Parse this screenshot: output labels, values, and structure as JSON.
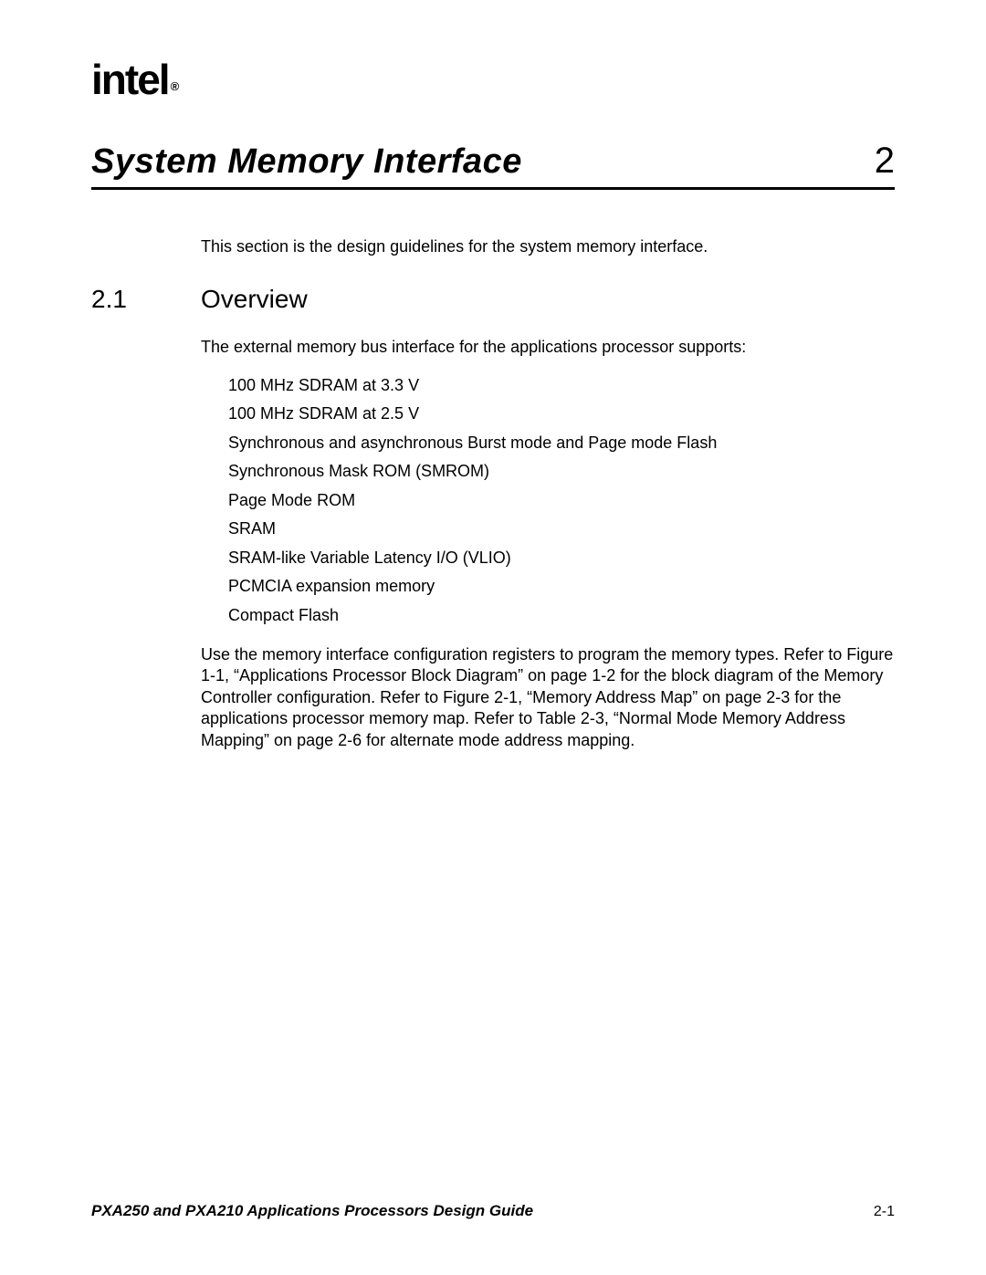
{
  "brand": {
    "logo_text": "intel",
    "registered": "®"
  },
  "chapter": {
    "title": "System Memory Interface",
    "number": "2"
  },
  "intro": "This section is the design guidelines for the system memory interface.",
  "section": {
    "number": "2.1",
    "title": "Overview"
  },
  "overview_intro": "The external memory bus interface for the applications processor supports:",
  "bullets": [
    "100 MHz SDRAM at 3.3 V",
    "100 MHz SDRAM at 2.5 V",
    "Synchronous and asynchronous Burst mode and Page mode Flash",
    "Synchronous Mask ROM (SMROM)",
    "Page Mode ROM",
    "SRAM",
    "SRAM-like Variable Latency I/O (VLIO)",
    "PCMCIA expansion memory",
    "Compact Flash"
  ],
  "refs": "Use the memory interface configuration registers to program the memory types. Refer to Figure 1-1, “Applications Processor Block Diagram” on page 1-2 for the block diagram of the Memory Controller configuration. Refer to Figure 2-1, “Memory Address Map” on page 2-3 for the applications processor memory map. Refer to Table 2-3, “Normal Mode Memory Address Mapping” on page 2-6 for alternate mode address mapping.",
  "footer": {
    "doc_title": "PXA250 and PXA210 Applications Processors Design Guide",
    "page": "2-1"
  },
  "colors": {
    "text": "#000000",
    "background": "#ffffff",
    "rule": "#000000"
  },
  "typography": {
    "chapter_title_pt": 38,
    "chapter_number_pt": 40,
    "section_pt": 28,
    "body_pt": 18,
    "footer_pt": 17
  }
}
